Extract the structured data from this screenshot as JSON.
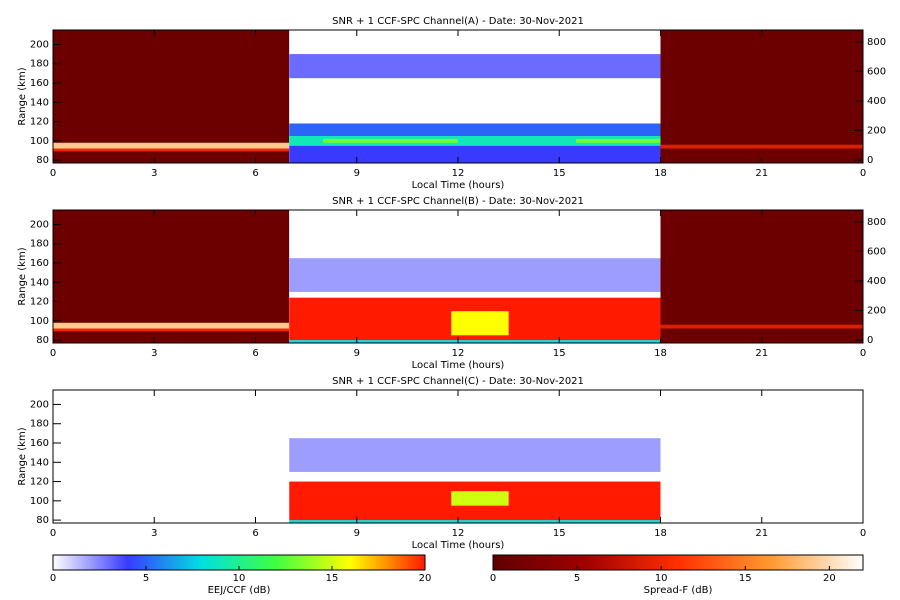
{
  "chart_data": [
    {
      "type": "heatmap",
      "title": "SNR + 1 CCF-SPC Channel(A) - Date: 30-Nov-2021",
      "x_label": "Local Time (hours)",
      "y_label": "Range (km)",
      "xlim": [
        0,
        24
      ],
      "xticks": [
        0,
        3,
        6,
        9,
        12,
        15,
        18,
        21,
        {
          "value": 24,
          "label": "0"
        }
      ],
      "ylim": [
        77,
        215
      ],
      "yticks": [
        80,
        100,
        120,
        140,
        160,
        180,
        200
      ],
      "y2lim": [
        -20,
        880
      ],
      "y2ticks": [
        0,
        200,
        400,
        600,
        800
      ],
      "cells": [
        [
          0,
          7,
          77,
          215,
          1,
          1
        ],
        [
          0,
          7,
          89,
          92,
          10,
          1
        ],
        [
          0,
          7,
          92,
          98,
          19,
          1
        ],
        [
          7,
          18,
          77,
          215,
          0,
          0
        ],
        [
          7,
          18,
          165,
          190,
          3,
          0
        ],
        [
          7,
          18,
          77,
          95,
          4,
          0
        ],
        [
          7,
          18,
          105,
          118,
          5,
          0
        ],
        [
          7,
          18,
          95,
          105,
          9,
          0
        ],
        [
          8,
          12,
          98,
          102,
          13,
          0
        ],
        [
          15.5,
          18,
          98,
          102,
          13,
          0
        ],
        [
          18,
          24,
          77,
          215,
          1,
          1
        ],
        [
          18,
          24,
          92,
          96,
          9,
          1
        ]
      ]
    },
    {
      "type": "heatmap",
      "title": "SNR + 1 CCF-SPC Channel(B) - Date: 30-Nov-2021",
      "x_label": "Local Time (hours)",
      "y_label": "Range (km)",
      "xlim": [
        0,
        24
      ],
      "xticks": [
        0,
        3,
        6,
        9,
        12,
        15,
        18,
        21,
        {
          "value": 24,
          "label": "0"
        }
      ],
      "ylim": [
        77,
        215
      ],
      "yticks": [
        80,
        100,
        120,
        140,
        160,
        180,
        200
      ],
      "y2lim": [
        -20,
        880
      ],
      "y2ticks": [
        0,
        200,
        400,
        600,
        800
      ],
      "cells": [
        [
          0,
          7,
          77,
          215,
          1,
          1
        ],
        [
          0,
          7,
          89,
          92,
          10,
          1
        ],
        [
          0,
          7,
          92,
          98,
          19,
          1
        ],
        [
          7,
          18,
          77,
          215,
          0,
          0
        ],
        [
          7,
          18,
          130,
          165,
          2,
          0
        ],
        [
          7,
          18,
          77,
          80,
          8,
          0
        ],
        [
          7,
          18,
          80,
          124,
          20,
          0
        ],
        [
          11.8,
          13.5,
          85,
          110,
          16,
          0
        ],
        [
          18,
          24,
          77,
          215,
          1,
          1
        ],
        [
          18,
          24,
          92,
          96,
          9,
          1
        ]
      ]
    },
    {
      "type": "heatmap",
      "title": "SNR + 1 CCF-SPC Channel(C) - Date: 30-Nov-2021",
      "x_label": "Local Time (hours)",
      "y_label": "Range (km)",
      "xlim": [
        0,
        24
      ],
      "xticks": [
        0,
        3,
        6,
        9,
        12,
        15,
        18,
        21,
        {
          "value": 24,
          "label": "0"
        }
      ],
      "ylim": [
        77,
        215
      ],
      "yticks": [
        80,
        100,
        120,
        140,
        160,
        180,
        200
      ],
      "cells": [
        [
          7,
          18,
          130,
          165,
          2,
          0
        ],
        [
          7,
          18,
          77,
          80,
          8,
          0
        ],
        [
          7,
          18,
          80,
          120,
          20,
          0
        ],
        [
          11.8,
          13.5,
          95,
          110,
          15,
          0
        ]
      ]
    }
  ],
  "colormaps": [
    {
      "label": "EEJ/CCF (dB)",
      "lim": [
        0,
        20
      ],
      "ticks": [
        0,
        5,
        10,
        15,
        20
      ],
      "colors": [
        "#ffffff",
        "#3a3aff",
        "#00e0e0",
        "#40ff40",
        "#ffff00",
        "#ff1a00"
      ]
    },
    {
      "label": "Spread-F (dB)",
      "lim": [
        0,
        22
      ],
      "ticks": [
        0,
        5,
        10,
        15,
        20
      ],
      "colors": [
        "#600000",
        "#a00000",
        "#ff3000",
        "#ff9a30",
        "#ffffff"
      ]
    }
  ]
}
